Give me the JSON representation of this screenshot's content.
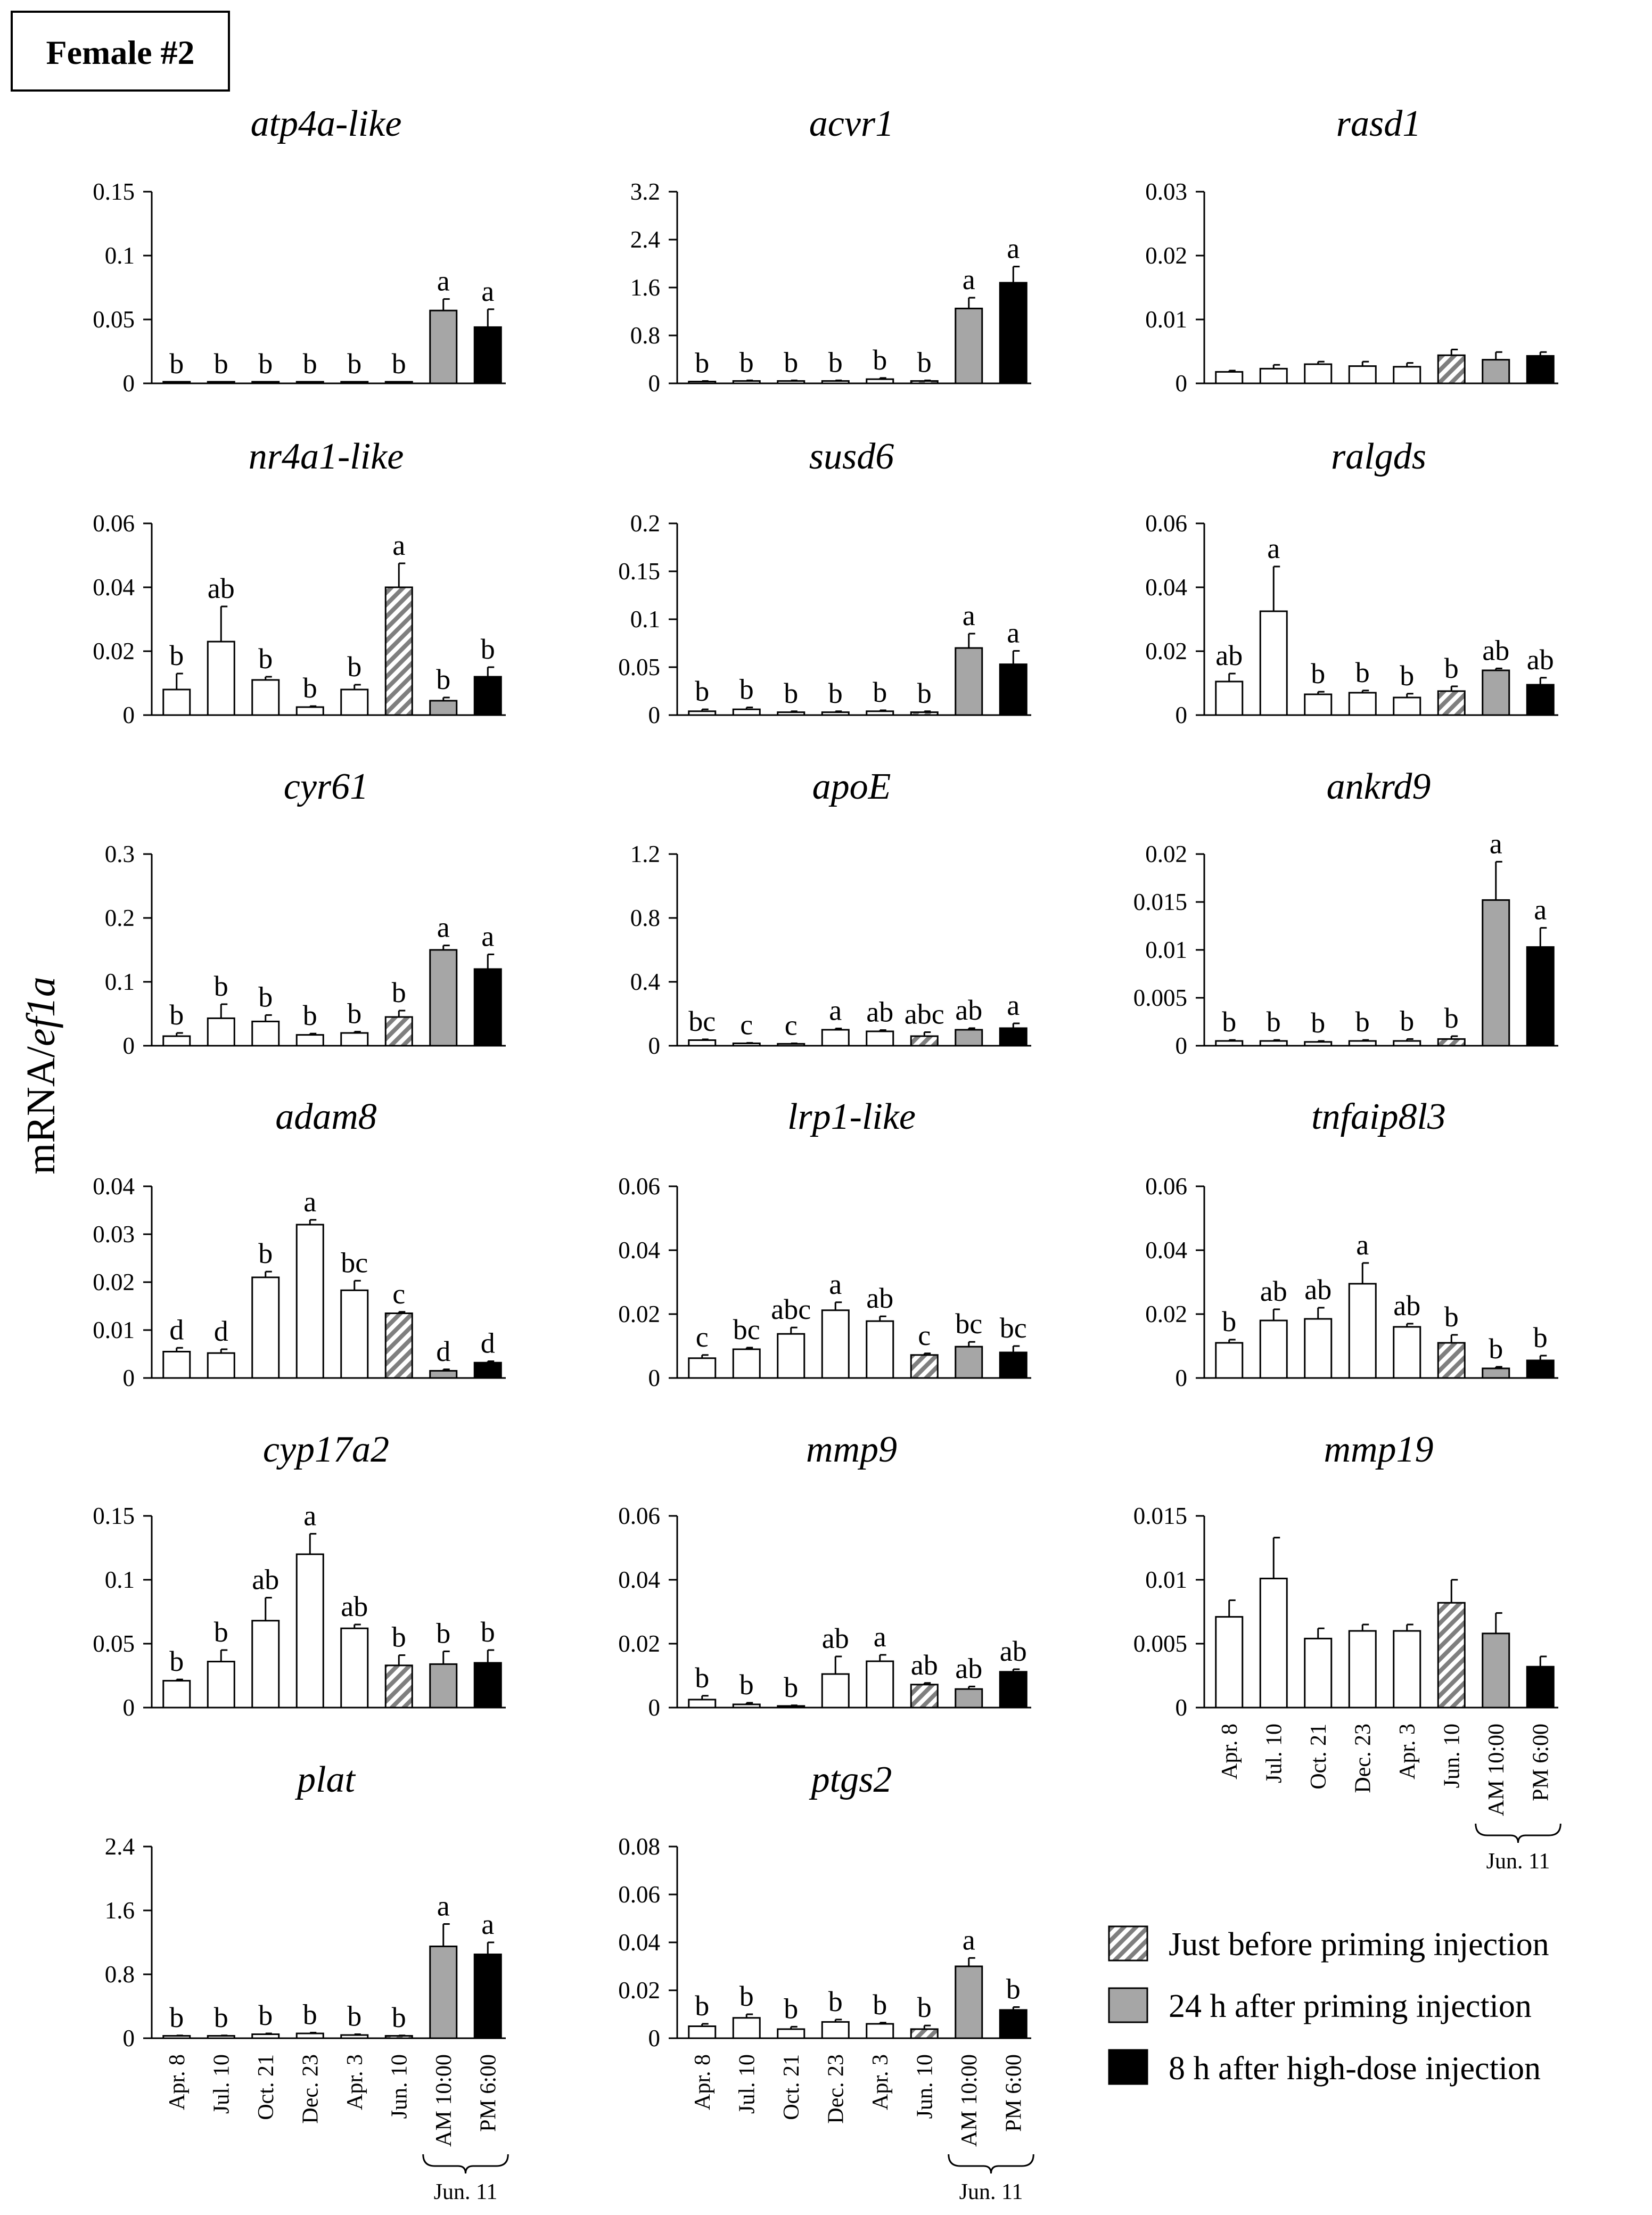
{
  "figure": {
    "label": "Female #2",
    "y_axis_label": "mRNA/ef1a",
    "y_axis_label_parts": [
      {
        "text": "mRNA/",
        "italic": false
      },
      {
        "text": "ef1a",
        "italic": true
      }
    ],
    "categories": [
      "Apr. 8",
      "Jul. 10",
      "Oct. 21",
      "Dec. 23",
      "Apr. 3",
      "Jun. 10",
      "AM 10:00",
      "PM 6:00"
    ],
    "group_label": "Jun. 11",
    "legend": [
      {
        "label": "Just before priming injection",
        "style": "hatched"
      },
      {
        "label": "24 h after priming injection",
        "style": "gray"
      },
      {
        "label": "8 h after high-dose injection",
        "style": "black"
      }
    ],
    "colors": {
      "open": "#ffffff",
      "gray": "#a6a6a6",
      "black": "#000000",
      "hatch": "#7f7f7f",
      "outline": "#000000"
    }
  },
  "chart_data": [
    {
      "type": "bar",
      "title": "atp4a-like",
      "ylim": [
        0,
        0.15
      ],
      "yticks": [
        "0",
        "0.05",
        "0.1",
        "0.15"
      ],
      "values": [
        0.0012,
        0.0012,
        0.0012,
        0.0012,
        0.0012,
        0.0012,
        0.057,
        0.044
      ],
      "errors": [
        0,
        0,
        0,
        0,
        0,
        0,
        0.009,
        0.014
      ],
      "letters": [
        "b",
        "b",
        "b",
        "b",
        "b",
        "b",
        "a",
        "a"
      ]
    },
    {
      "type": "bar",
      "title": "acvr1",
      "ylim": [
        0,
        3.2
      ],
      "yticks": [
        "0",
        "0.8",
        "1.6",
        "2.4",
        "3.2"
      ],
      "values": [
        0.03,
        0.04,
        0.04,
        0.04,
        0.07,
        0.04,
        1.25,
        1.68
      ],
      "errors": [
        0.01,
        0.01,
        0.01,
        0.01,
        0.02,
        0.01,
        0.18,
        0.27
      ],
      "letters": [
        "b",
        "b",
        "b",
        "b",
        "b",
        "b",
        "a",
        "a"
      ]
    },
    {
      "type": "bar",
      "title": "rasd1",
      "ylim": [
        0,
        0.03
      ],
      "yticks": [
        "0",
        "0.01",
        "0.02",
        "0.03"
      ],
      "values": [
        0.0018,
        0.0023,
        0.003,
        0.0027,
        0.0026,
        0.0044,
        0.0037,
        0.0043
      ],
      "errors": [
        0.0002,
        0.0006,
        0.0004,
        0.0007,
        0.0006,
        0.0009,
        0.0012,
        0.0006
      ],
      "letters": [
        "",
        "",
        "",
        "",
        "",
        "",
        "",
        ""
      ]
    },
    {
      "type": "bar",
      "title": "nr4a1-like",
      "ylim": [
        0,
        0.06
      ],
      "yticks": [
        "0",
        "0.02",
        "0.04",
        "0.06"
      ],
      "values": [
        0.008,
        0.023,
        0.011,
        0.0025,
        0.008,
        0.04,
        0.0045,
        0.012
      ],
      "errors": [
        0.005,
        0.011,
        0.001,
        0.0003,
        0.0015,
        0.0075,
        0.001,
        0.003
      ],
      "letters": [
        "b",
        "ab",
        "b",
        "b",
        "b",
        "a",
        "b",
        "b"
      ]
    },
    {
      "type": "bar",
      "title": "susd6",
      "ylim": [
        0,
        0.2
      ],
      "yticks": [
        "0",
        "0.05",
        "0.1",
        "0.15",
        "0.2"
      ],
      "values": [
        0.004,
        0.006,
        0.003,
        0.003,
        0.004,
        0.003,
        0.07,
        0.053
      ],
      "errors": [
        0.002,
        0.002,
        0.001,
        0.001,
        0.001,
        0.001,
        0.015,
        0.014
      ],
      "letters": [
        "b",
        "b",
        "b",
        "b",
        "b",
        "b",
        "a",
        "a"
      ]
    },
    {
      "type": "bar",
      "title": "ralgds",
      "ylim": [
        0,
        0.06
      ],
      "yticks": [
        "0",
        "0.02",
        "0.04",
        "0.06"
      ],
      "values": [
        0.0105,
        0.0325,
        0.0065,
        0.007,
        0.0055,
        0.0075,
        0.014,
        0.0095
      ],
      "errors": [
        0.0025,
        0.014,
        0.0008,
        0.0007,
        0.0012,
        0.0015,
        0.0006,
        0.0022
      ],
      "letters": [
        "ab",
        "a",
        "b",
        "b",
        "b",
        "b",
        "ab",
        "ab"
      ]
    },
    {
      "type": "bar",
      "title": "cyr61",
      "ylim": [
        0,
        0.3
      ],
      "yticks": [
        "0",
        "0.1",
        "0.2",
        "0.3"
      ],
      "values": [
        0.015,
        0.043,
        0.038,
        0.017,
        0.02,
        0.045,
        0.15,
        0.12
      ],
      "errors": [
        0.005,
        0.022,
        0.01,
        0.002,
        0.002,
        0.01,
        0.007,
        0.023
      ],
      "letters": [
        "b",
        "b",
        "b",
        "b",
        "b",
        "b",
        "a",
        "a"
      ]
    },
    {
      "type": "bar",
      "title": "apoE",
      "ylim": [
        0,
        1.2
      ],
      "yticks": [
        "0",
        "0.4",
        "0.8",
        "1.2"
      ],
      "values": [
        0.035,
        0.015,
        0.012,
        0.1,
        0.09,
        0.06,
        0.1,
        0.11
      ],
      "errors": [
        0.005,
        0.003,
        0.003,
        0.008,
        0.008,
        0.025,
        0.01,
        0.03
      ],
      "letters": [
        "bc",
        "c",
        "c",
        "a",
        "ab",
        "abc",
        "ab",
        "a"
      ]
    },
    {
      "type": "bar",
      "title": "ankrd9",
      "ylim": [
        0,
        0.02
      ],
      "yticks": [
        "0",
        "0.005",
        "0.01",
        "0.015",
        "0.02"
      ],
      "values": [
        0.0005,
        0.0005,
        0.0004,
        0.0005,
        0.0005,
        0.0007,
        0.0152,
        0.0103
      ],
      "errors": [
        0.0001,
        0.0001,
        0.0001,
        0.0001,
        0.0002,
        0.0003,
        0.004,
        0.002
      ],
      "letters": [
        "b",
        "b",
        "b",
        "b",
        "b",
        "b",
        "a",
        "a"
      ]
    },
    {
      "type": "bar",
      "title": "adam8",
      "ylim": [
        0,
        0.04
      ],
      "yticks": [
        "0",
        "0.01",
        "0.02",
        "0.03",
        "0.04"
      ],
      "values": [
        0.0055,
        0.0052,
        0.021,
        0.032,
        0.0183,
        0.0135,
        0.0015,
        0.0032
      ],
      "errors": [
        0.0008,
        0.0008,
        0.0012,
        0.001,
        0.002,
        0.0003,
        0.0003,
        0.0003
      ],
      "letters": [
        "d",
        "d",
        "b",
        "a",
        "bc",
        "c",
        "d",
        "d"
      ]
    },
    {
      "type": "bar",
      "title": "lrp1-like",
      "ylim": [
        0,
        0.06
      ],
      "yticks": [
        "0",
        "0.02",
        "0.04",
        "0.06"
      ],
      "values": [
        0.0062,
        0.009,
        0.0138,
        0.0212,
        0.0178,
        0.0072,
        0.0098,
        0.008
      ],
      "errors": [
        0.001,
        0.0005,
        0.002,
        0.0025,
        0.0015,
        0.0005,
        0.0015,
        0.002
      ],
      "letters": [
        "c",
        "bc",
        "abc",
        "a",
        "ab",
        "c",
        "bc",
        "bc"
      ]
    },
    {
      "type": "bar",
      "title": "tnfaip8l3",
      "ylim": [
        0,
        0.06
      ],
      "yticks": [
        "0",
        "0.02",
        "0.04",
        "0.06"
      ],
      "values": [
        0.011,
        0.018,
        0.0185,
        0.0295,
        0.016,
        0.011,
        0.003,
        0.0055
      ],
      "errors": [
        0.001,
        0.0035,
        0.0035,
        0.0065,
        0.001,
        0.0025,
        0.0005,
        0.0015
      ],
      "letters": [
        "b",
        "ab",
        "ab",
        "a",
        "ab",
        "b",
        "b",
        "b"
      ]
    },
    {
      "type": "bar",
      "title": "cyp17a2",
      "ylim": [
        0,
        0.15
      ],
      "yticks": [
        "0",
        "0.05",
        "0.1",
        "0.15"
      ],
      "values": [
        0.021,
        0.036,
        0.068,
        0.12,
        0.062,
        0.033,
        0.034,
        0.035
      ],
      "errors": [
        0.001,
        0.009,
        0.018,
        0.016,
        0.003,
        0.008,
        0.01,
        0.01
      ],
      "letters": [
        "b",
        "b",
        "ab",
        "a",
        "ab",
        "b",
        "b",
        "b"
      ]
    },
    {
      "type": "bar",
      "title": "mmp9",
      "ylim": [
        0,
        0.06
      ],
      "yticks": [
        "0",
        "0.02",
        "0.04",
        "0.06"
      ],
      "values": [
        0.0025,
        0.001,
        0.0005,
        0.0105,
        0.0145,
        0.0072,
        0.0058,
        0.0112
      ],
      "errors": [
        0.0012,
        0.0005,
        0.0002,
        0.0055,
        0.002,
        0.0005,
        0.0008,
        0.0008
      ],
      "letters": [
        "b",
        "b",
        "b",
        "ab",
        "a",
        "ab",
        "ab",
        "ab"
      ]
    },
    {
      "type": "bar",
      "title": "mmp19",
      "ylim": [
        0,
        0.015
      ],
      "yticks": [
        "0",
        "0.005",
        "0.01",
        "0.015"
      ],
      "values": [
        0.0071,
        0.0101,
        0.0054,
        0.006,
        0.006,
        0.0082,
        0.0058,
        0.0032
      ],
      "errors": [
        0.0013,
        0.0032,
        0.0008,
        0.0005,
        0.0005,
        0.0018,
        0.0016,
        0.0008
      ],
      "letters": [
        "",
        "",
        "",
        "",
        "",
        "",
        "",
        ""
      ]
    },
    {
      "type": "bar",
      "title": "plat",
      "ylim": [
        0,
        2.4
      ],
      "yticks": [
        "0",
        "0.8",
        "1.6",
        "2.4"
      ],
      "values": [
        0.03,
        0.03,
        0.05,
        0.06,
        0.04,
        0.03,
        1.15,
        1.05
      ],
      "errors": [
        0.005,
        0.005,
        0.01,
        0.01,
        0.01,
        0.005,
        0.28,
        0.15
      ],
      "letters": [
        "b",
        "b",
        "b",
        "b",
        "b",
        "b",
        "a",
        "a"
      ]
    },
    {
      "type": "bar",
      "title": "ptgs2",
      "ylim": [
        0,
        0.08
      ],
      "yticks": [
        "0",
        "0.02",
        "0.04",
        "0.06",
        "0.08"
      ],
      "values": [
        0.005,
        0.0085,
        0.0038,
        0.0068,
        0.006,
        0.0038,
        0.03,
        0.0118
      ],
      "errors": [
        0.001,
        0.0015,
        0.001,
        0.001,
        0.0005,
        0.0015,
        0.0035,
        0.0012
      ],
      "letters": [
        "b",
        "b",
        "b",
        "b",
        "b",
        "b",
        "a",
        "b"
      ]
    }
  ]
}
